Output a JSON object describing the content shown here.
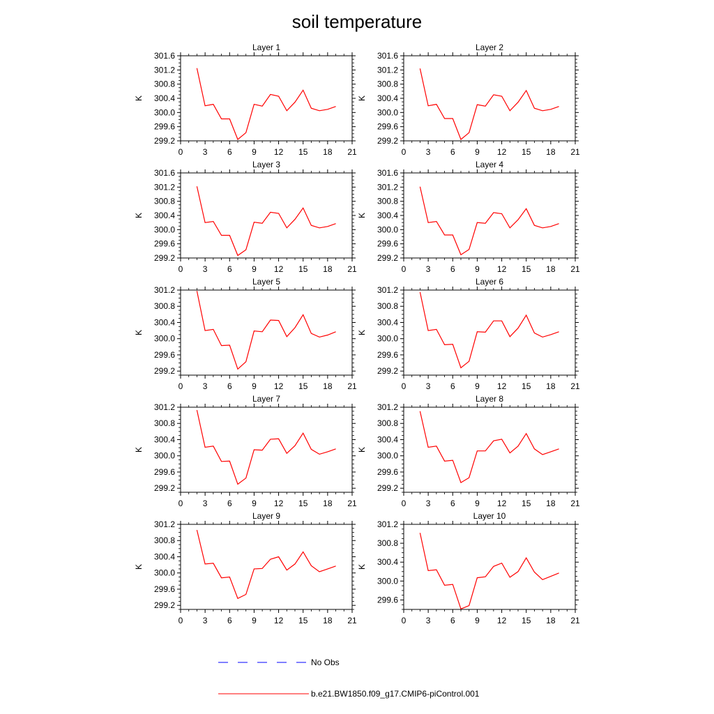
{
  "title": "soil temperature",
  "x_ticks": [
    0,
    3,
    6,
    9,
    12,
    15,
    18,
    21
  ],
  "xlim": [
    0,
    21
  ],
  "months": [
    2,
    3,
    4,
    5,
    6,
    7,
    8,
    9,
    10,
    11,
    12,
    13,
    14,
    15,
    16,
    17,
    18,
    19
  ],
  "colors": {
    "model": "#ff0000",
    "obs": "#0000ff",
    "axis": "#000000"
  },
  "legend": [
    {
      "label": "No Obs",
      "style": "dashed",
      "color": "#0000ff"
    },
    {
      "label": "b.e21.BW1850.f09_g17.CMIP6-piControl.001",
      "style": "solid",
      "color": "#ff0000"
    }
  ],
  "chart_data": [
    {
      "type": "line",
      "title": "Layer 1",
      "ylabel": "K",
      "ylim": [
        299.2,
        301.6
      ],
      "yticks": [
        "299.2",
        "299.6",
        "300.0",
        "300.4",
        "300.8",
        "301.2",
        "301.6"
      ],
      "series": [
        {
          "name": "b.e21.BW1850.f09_g17.CMIP6-piControl.001",
          "values": [
            301.25,
            300.19,
            300.23,
            299.82,
            299.82,
            299.24,
            299.43,
            300.23,
            300.18,
            300.51,
            300.46,
            300.05,
            300.29,
            300.63,
            300.12,
            300.05,
            300.09,
            300.17
          ]
        }
      ]
    },
    {
      "type": "line",
      "title": "Layer 2",
      "ylabel": "K",
      "ylim": [
        299.2,
        301.6
      ],
      "yticks": [
        "299.2",
        "299.6",
        "300.0",
        "300.4",
        "300.8",
        "301.2",
        "301.6"
      ],
      "series": [
        {
          "name": "b.e21.BW1850.f09_g17.CMIP6-piControl.001",
          "values": [
            301.24,
            300.19,
            300.23,
            299.83,
            299.83,
            299.24,
            299.43,
            300.22,
            300.18,
            300.5,
            300.46,
            300.05,
            300.29,
            300.62,
            300.12,
            300.05,
            300.09,
            300.17
          ]
        }
      ]
    },
    {
      "type": "line",
      "title": "Layer 3",
      "ylabel": "K",
      "ylim": [
        299.2,
        301.6
      ],
      "yticks": [
        "299.2",
        "299.6",
        "300.0",
        "300.4",
        "300.8",
        "301.2",
        "301.6"
      ],
      "series": [
        {
          "name": "b.e21.BW1850.f09_g17.CMIP6-piControl.001",
          "values": [
            301.22,
            300.2,
            300.23,
            299.84,
            299.84,
            299.27,
            299.43,
            300.21,
            300.18,
            300.49,
            300.46,
            300.05,
            300.29,
            300.61,
            300.12,
            300.05,
            300.09,
            300.17
          ]
        }
      ]
    },
    {
      "type": "line",
      "title": "Layer 4",
      "ylabel": "K",
      "ylim": [
        299.2,
        301.6
      ],
      "yticks": [
        "299.2",
        "299.6",
        "300.0",
        "300.4",
        "300.8",
        "301.2",
        "301.6"
      ],
      "series": [
        {
          "name": "b.e21.BW1850.f09_g17.CMIP6-piControl.001",
          "values": [
            301.21,
            300.2,
            300.23,
            299.85,
            299.85,
            299.29,
            299.44,
            300.2,
            300.18,
            300.48,
            300.45,
            300.05,
            300.28,
            300.59,
            300.12,
            300.05,
            300.09,
            300.17
          ]
        }
      ]
    },
    {
      "type": "line",
      "title": "Layer 5",
      "ylabel": "K",
      "ylim": [
        299.1,
        301.2
      ],
      "yticks": [
        "299.2",
        "299.6",
        "300.0",
        "300.4",
        "300.8",
        "301.2"
      ],
      "series": [
        {
          "name": "b.e21.BW1850.f09_g17.CMIP6-piControl.001",
          "values": [
            301.18,
            300.2,
            300.23,
            299.83,
            299.84,
            299.25,
            299.43,
            300.19,
            300.17,
            300.46,
            300.45,
            300.05,
            300.27,
            300.59,
            300.13,
            300.04,
            300.09,
            300.17
          ]
        }
      ]
    },
    {
      "type": "line",
      "title": "Layer 6",
      "ylabel": "K",
      "ylim": [
        299.1,
        301.2
      ],
      "yticks": [
        "299.2",
        "299.6",
        "300.0",
        "300.4",
        "300.8",
        "301.2"
      ],
      "series": [
        {
          "name": "b.e21.BW1850.f09_g17.CMIP6-piControl.001",
          "values": [
            301.15,
            300.2,
            300.23,
            299.85,
            299.86,
            299.28,
            299.44,
            300.17,
            300.16,
            300.44,
            300.44,
            300.05,
            300.26,
            300.58,
            300.14,
            300.04,
            300.1,
            300.17
          ]
        }
      ]
    },
    {
      "type": "line",
      "title": "Layer 7",
      "ylabel": "K",
      "ylim": [
        299.1,
        301.2
      ],
      "yticks": [
        "299.2",
        "299.6",
        "300.0",
        "300.4",
        "300.8",
        "301.2"
      ],
      "series": [
        {
          "name": "b.e21.BW1850.f09_g17.CMIP6-piControl.001",
          "values": [
            301.13,
            300.21,
            300.24,
            299.86,
            299.87,
            299.3,
            299.45,
            300.15,
            300.14,
            300.41,
            300.42,
            300.06,
            300.25,
            300.56,
            300.16,
            300.04,
            300.1,
            300.17
          ]
        }
      ]
    },
    {
      "type": "line",
      "title": "Layer 8",
      "ylabel": "K",
      "ylim": [
        299.1,
        301.2
      ],
      "yticks": [
        "299.2",
        "299.6",
        "300.0",
        "300.4",
        "300.8",
        "301.2"
      ],
      "series": [
        {
          "name": "b.e21.BW1850.f09_g17.CMIP6-piControl.001",
          "values": [
            301.1,
            300.21,
            300.24,
            299.87,
            299.89,
            299.34,
            299.46,
            300.12,
            300.12,
            300.37,
            300.41,
            300.07,
            300.24,
            300.55,
            300.17,
            300.03,
            300.1,
            300.17
          ]
        }
      ]
    },
    {
      "type": "line",
      "title": "Layer 9",
      "ylabel": "K",
      "ylim": [
        299.1,
        301.2
      ],
      "yticks": [
        "299.2",
        "299.6",
        "300.0",
        "300.4",
        "300.8",
        "301.2"
      ],
      "series": [
        {
          "name": "b.e21.BW1850.f09_g17.CMIP6-piControl.001",
          "values": [
            301.06,
            300.22,
            300.24,
            299.88,
            299.9,
            299.37,
            299.47,
            300.1,
            300.11,
            300.34,
            300.4,
            300.07,
            300.22,
            300.52,
            300.18,
            300.03,
            300.1,
            300.17
          ]
        }
      ]
    },
    {
      "type": "line",
      "title": "Layer 10",
      "ylabel": "K",
      "ylim": [
        299.4,
        301.2
      ],
      "yticks": [
        "299.6",
        "300.0",
        "300.4",
        "300.8",
        "301.2"
      ],
      "series": [
        {
          "name": "b.e21.BW1850.f09_g17.CMIP6-piControl.001",
          "values": [
            301.02,
            300.22,
            300.24,
            299.91,
            299.93,
            299.41,
            299.48,
            300.07,
            300.09,
            300.31,
            300.38,
            300.08,
            300.2,
            300.49,
            300.19,
            300.03,
            300.1,
            300.17
          ]
        }
      ]
    }
  ]
}
